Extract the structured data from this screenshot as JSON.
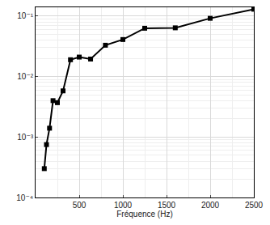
{
  "chart_data": {
    "type": "line",
    "x_label": "Fréquence (Hz)",
    "x": [
      100,
      125,
      160,
      200,
      250,
      315,
      400,
      500,
      630,
      800,
      1000,
      1250,
      1600,
      2000,
      2500
    ],
    "values": [
      0.0003,
      0.00075,
      0.0014,
      0.004,
      0.0037,
      0.0058,
      0.019,
      0.021,
      0.0195,
      0.033,
      0.041,
      0.063,
      0.064,
      0.092,
      0.13
    ],
    "color": "#000000",
    "marker": "square",
    "line_style": "solid",
    "log": "y",
    "grid": true,
    "xlim": [
      0,
      2500
    ],
    "xticks": [
      500,
      1000,
      1500,
      2000,
      2500
    ],
    "ylim": [
      0.0001,
      0.14
    ],
    "yticks": [
      {
        "value": 0.0001,
        "label": "10⁻⁴"
      },
      {
        "value": 0.001,
        "label": "10⁻³"
      },
      {
        "value": 0.01,
        "label": "10⁻²"
      },
      {
        "value": 0.1,
        "label": "10⁻¹"
      }
    ]
  }
}
